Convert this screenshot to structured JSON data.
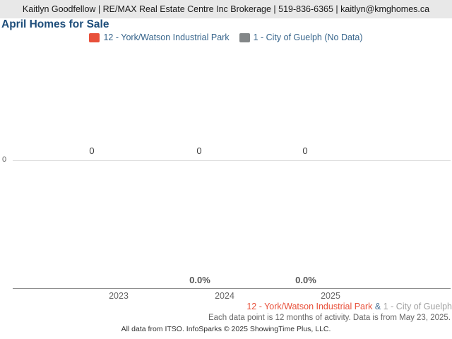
{
  "header": {
    "text": "Kaitlyn Goodfellow | RE/MAX Real Estate Centre Inc Brokerage | 519-836-6365 | kaitlyn@kmghomes.ca"
  },
  "title": "April Homes for Sale",
  "legend": {
    "series1": {
      "label": "12 - York/Watson Industrial Park",
      "color": "#e8503a"
    },
    "series2": {
      "label": "1 - City of Guelph (No Data)",
      "color": "#838788"
    }
  },
  "chart_data": {
    "type": "line",
    "title": "April Homes for Sale",
    "x": [
      "2023",
      "2024",
      "2025"
    ],
    "series": [
      {
        "name": "12 - York/Watson Industrial Park",
        "color": "#e8503a",
        "values": [
          0,
          0,
          0
        ],
        "yoy_change_labels": [
          null,
          "0.0%",
          "0.0%"
        ]
      },
      {
        "name": "1 - City of Guelph",
        "color": "#838788",
        "values": [
          null,
          null,
          null
        ],
        "note": "No Data"
      }
    ],
    "value_labels": [
      "0",
      "0",
      "0"
    ],
    "pct_labels": [
      "0.0%",
      "0.0%"
    ],
    "x_tick_labels": [
      "2023",
      "2024",
      "2025"
    ],
    "y_tick_labels": [
      "0"
    ],
    "ylim": [
      0,
      0
    ],
    "grid": "single horizontal gridline at y=0",
    "legend_position": "top-center"
  },
  "footer": {
    "series_line": {
      "series1": "12 - York/Watson Industrial Park",
      "separator": "&",
      "series2": "1 - City of Guelph"
    },
    "data_note": "Each data point is 12 months of activity. Data is from May 23, 2025.",
    "attribution": "All data from ITSO. InfoSparks © 2025 ShowingTime Plus, LLC."
  },
  "colors": {
    "banner_bg": "#e8e8e8",
    "title_blue": "#1d4d7a",
    "legend_text_blue": "#36648b",
    "series_red": "#e8503a",
    "series_gray": "#838788",
    "gridline": "#dcdcdc",
    "axis_line": "#8f8f8f"
  }
}
